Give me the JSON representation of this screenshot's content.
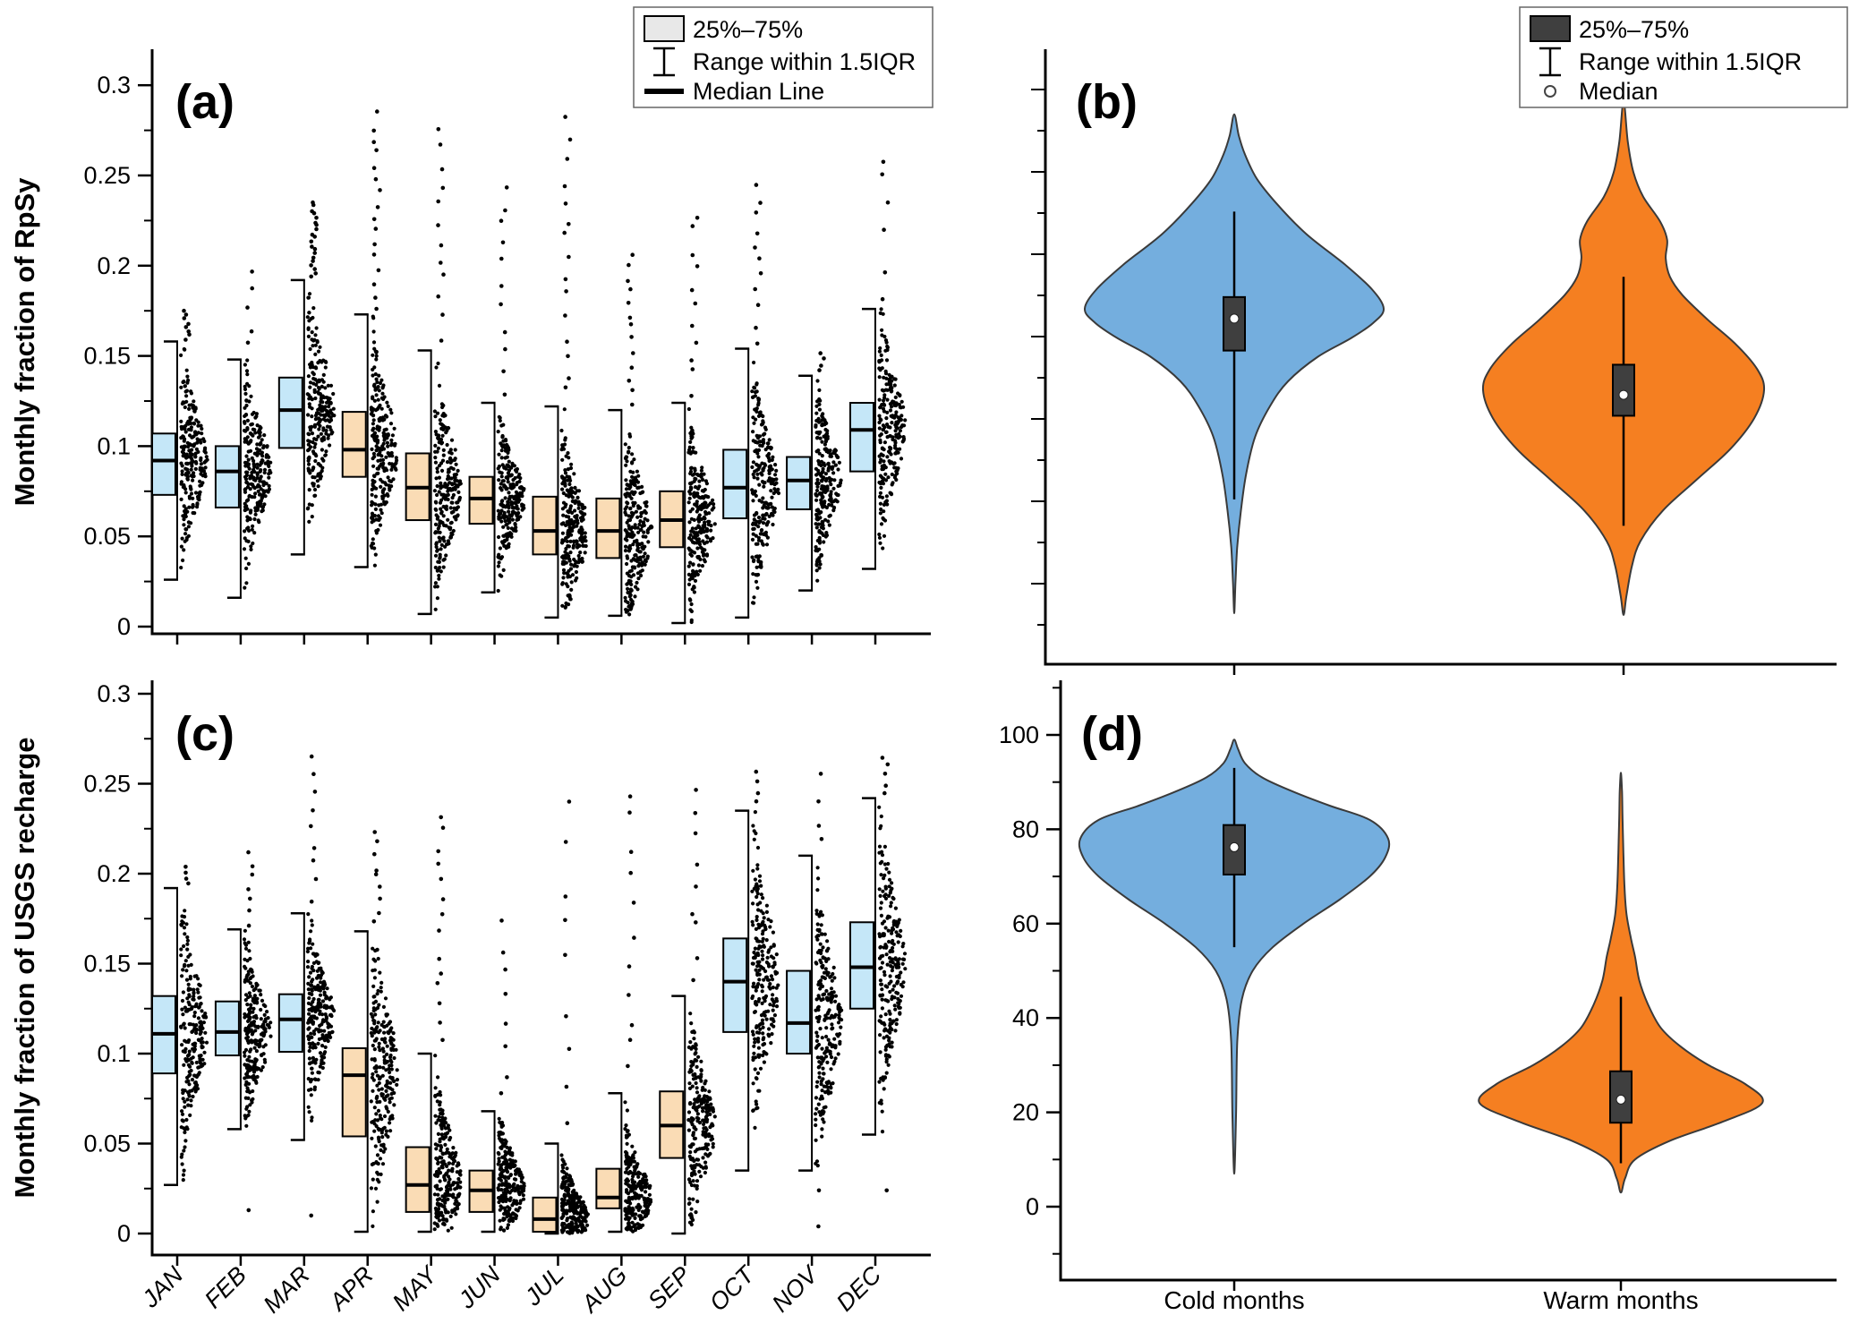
{
  "figure": {
    "background": "#ffffff",
    "panels": {
      "a": {
        "letter": "(a)",
        "ylabel": "Monthly fraction of RpSy"
      },
      "b": {
        "letter": "(b)"
      },
      "c": {
        "letter": "(c)",
        "ylabel": "Monthly fraction of USGS recharge"
      },
      "d": {
        "letter": "(d)"
      }
    },
    "legend_left": {
      "iqr": "25%–75%",
      "range": "Range within 1.5IQR",
      "median": "Median Line"
    },
    "legend_right": {
      "iqr": "25%–75%",
      "range": "Range within 1.5IQR",
      "median": "Median"
    },
    "colors": {
      "box_cold": "#C5E7F8",
      "box_warm": "#FADCB5",
      "violin_cold": "#74AEDE",
      "violin_warm": "#F57F21",
      "violin_box": "#3F3F3F",
      "legend_swatch_left": "#E8E8E8",
      "legend_swatch_right": "#3F3F3F",
      "dots": "#000000",
      "outline": "#3A3A3A"
    }
  },
  "chart_data": [
    {
      "panel": "a",
      "type": "box-scatter",
      "label": "(a)",
      "ylabel": "Monthly fraction of RpSy",
      "ylim": [
        0,
        0.3
      ],
      "yticks": [
        0,
        0.05,
        0.1,
        0.15,
        0.2,
        0.25,
        0.3
      ],
      "ytick_labels": [
        "0",
        "0.05",
        "0.1",
        "0.15",
        "0.2",
        "0.25",
        "0.3"
      ],
      "categories": [
        "JAN",
        "FEB",
        "MAR",
        "APR",
        "MAY",
        "JUN",
        "JUL",
        "AUG",
        "SEP",
        "OCT",
        "NOV",
        "DEC"
      ],
      "season": [
        "cold",
        "cold",
        "cold",
        "warm",
        "warm",
        "warm",
        "warm",
        "warm",
        "warm",
        "cold",
        "cold",
        "cold"
      ],
      "legend": {
        "iqr": "25%–75%",
        "range": "Range within 1.5IQR",
        "median": "Median Line"
      },
      "boxes": [
        {
          "month": "JAN",
          "q1": 0.073,
          "median": 0.092,
          "q3": 0.107,
          "whisker_low": 0.026,
          "whisker_high": 0.158,
          "outlier_max": 0.176,
          "n_outliers": 8,
          "outliers_low": []
        },
        {
          "month": "FEB",
          "q1": 0.066,
          "median": 0.086,
          "q3": 0.1,
          "whisker_low": 0.016,
          "whisker_high": 0.148,
          "outlier_max": 0.198,
          "n_outliers": 5,
          "outliers_low": []
        },
        {
          "month": "MAR",
          "q1": 0.099,
          "median": 0.12,
          "q3": 0.138,
          "whisker_low": 0.04,
          "whisker_high": 0.192,
          "outlier_max": 0.236,
          "n_outliers": 20,
          "outliers_low": []
        },
        {
          "month": "APR",
          "q1": 0.083,
          "median": 0.098,
          "q3": 0.119,
          "whisker_low": 0.033,
          "whisker_high": 0.173,
          "outlier_max": 0.286,
          "n_outliers": 16,
          "outliers_low": []
        },
        {
          "month": "MAY",
          "q1": 0.059,
          "median": 0.077,
          "q3": 0.096,
          "whisker_low": 0.007,
          "whisker_high": 0.153,
          "outlier_max": 0.28,
          "n_outliers": 12,
          "outliers_low": []
        },
        {
          "month": "JUN",
          "q1": 0.057,
          "median": 0.071,
          "q3": 0.083,
          "whisker_low": 0.019,
          "whisker_high": 0.124,
          "outlier_max": 0.25,
          "n_outliers": 11,
          "outliers_low": []
        },
        {
          "month": "JUL",
          "q1": 0.04,
          "median": 0.053,
          "q3": 0.072,
          "whisker_low": 0.005,
          "whisker_high": 0.122,
          "outlier_max": 0.284,
          "n_outliers": 15,
          "outliers_low": []
        },
        {
          "month": "AUG",
          "q1": 0.038,
          "median": 0.053,
          "q3": 0.071,
          "whisker_low": 0.006,
          "whisker_high": 0.12,
          "outlier_max": 0.21,
          "n_outliers": 13,
          "outliers_low": []
        },
        {
          "month": "SEP",
          "q1": 0.044,
          "median": 0.059,
          "q3": 0.075,
          "whisker_low": 0.002,
          "whisker_high": 0.124,
          "outlier_max": 0.232,
          "n_outliers": 11,
          "outliers_low": []
        },
        {
          "month": "OCT",
          "q1": 0.06,
          "median": 0.077,
          "q3": 0.098,
          "whisker_low": 0.005,
          "whisker_high": 0.154,
          "outlier_max": 0.247,
          "n_outliers": 11,
          "outliers_low": []
        },
        {
          "month": "NOV",
          "q1": 0.065,
          "median": 0.081,
          "q3": 0.094,
          "whisker_low": 0.02,
          "whisker_high": 0.139,
          "outlier_max": 0.154,
          "n_outliers": 4,
          "outliers_low": []
        },
        {
          "month": "DEC",
          "q1": 0.086,
          "median": 0.109,
          "q3": 0.124,
          "whisker_low": 0.032,
          "whisker_high": 0.176,
          "outlier_max": 0.266,
          "n_outliers": 6,
          "outliers_low": []
        }
      ]
    },
    {
      "panel": "b",
      "type": "violin",
      "label": "(b)",
      "yaxis": "unlabeled ticks",
      "legend": {
        "iqr": "25%–75%",
        "range": "Range within 1.5IQR",
        "median": "Median"
      },
      "value_scale": "fraction of panel height from bottom axis",
      "groups": [
        {
          "name": "Cold months",
          "color_key": "violin_cold",
          "median": 0.562,
          "q1": 0.51,
          "q3": 0.597,
          "whisker_low": 0.268,
          "whisker_high": 0.736,
          "profile": [
            [
              0.083,
              0
            ],
            [
              0.13,
              0.008
            ],
            [
              0.19,
              0.02
            ],
            [
              0.25,
              0.045
            ],
            [
              0.31,
              0.08
            ],
            [
              0.37,
              0.14
            ],
            [
              0.42,
              0.24
            ],
            [
              0.46,
              0.36
            ],
            [
              0.5,
              0.56
            ],
            [
              0.53,
              0.78
            ],
            [
              0.555,
              0.93
            ],
            [
              0.578,
              1
            ],
            [
              0.61,
              0.92
            ],
            [
              0.65,
              0.74
            ],
            [
              0.7,
              0.48
            ],
            [
              0.75,
              0.28
            ],
            [
              0.79,
              0.15
            ],
            [
              0.83,
              0.07
            ],
            [
              0.86,
              0.03
            ],
            [
              0.894,
              0
            ]
          ]
        },
        {
          "name": "Warm months",
          "color_key": "violin_warm",
          "median": 0.438,
          "q1": 0.404,
          "q3": 0.487,
          "whisker_low": 0.225,
          "whisker_high": 0.63,
          "profile": [
            [
              0.08,
              0
            ],
            [
              0.11,
              0.02
            ],
            [
              0.16,
              0.06
            ],
            [
              0.2,
              0.12
            ],
            [
              0.25,
              0.28
            ],
            [
              0.3,
              0.52
            ],
            [
              0.35,
              0.76
            ],
            [
              0.4,
              0.93
            ],
            [
              0.446,
              1
            ],
            [
              0.48,
              0.95
            ],
            [
              0.52,
              0.8
            ],
            [
              0.56,
              0.6
            ],
            [
              0.6,
              0.42
            ],
            [
              0.63,
              0.33
            ],
            [
              0.66,
              0.3
            ],
            [
              0.69,
              0.31
            ],
            [
              0.72,
              0.26
            ],
            [
              0.76,
              0.14
            ],
            [
              0.8,
              0.07
            ],
            [
              0.85,
              0.03
            ],
            [
              0.915,
              0
            ]
          ]
        }
      ]
    },
    {
      "panel": "c",
      "type": "box-scatter",
      "label": "(c)",
      "ylabel": "Monthly fraction of USGS recharge",
      "ylim": [
        0,
        0.3
      ],
      "yticks": [
        0,
        0.05,
        0.1,
        0.15,
        0.2,
        0.25,
        0.3
      ],
      "ytick_labels": [
        "0",
        "0.05",
        "0.1",
        "0.15",
        "0.2",
        "0.25",
        "0.3"
      ],
      "categories": [
        "JAN",
        "FEB",
        "MAR",
        "APR",
        "MAY",
        "JUN",
        "JUL",
        "AUG",
        "SEP",
        "OCT",
        "NOV",
        "DEC"
      ],
      "season": [
        "cold",
        "cold",
        "cold",
        "warm",
        "warm",
        "warm",
        "warm",
        "warm",
        "warm",
        "cold",
        "cold",
        "cold"
      ],
      "boxes": [
        {
          "month": "JAN",
          "q1": 0.089,
          "median": 0.111,
          "q3": 0.132,
          "whisker_low": 0.027,
          "whisker_high": 0.192,
          "outlier_max": 0.206,
          "n_outliers": 4,
          "outliers_low": []
        },
        {
          "month": "FEB",
          "q1": 0.099,
          "median": 0.112,
          "q3": 0.129,
          "whisker_low": 0.058,
          "whisker_high": 0.169,
          "outlier_max": 0.212,
          "n_outliers": 7,
          "outliers_low": [
            0.013
          ]
        },
        {
          "month": "MAR",
          "q1": 0.101,
          "median": 0.119,
          "q3": 0.133,
          "whisker_low": 0.052,
          "whisker_high": 0.178,
          "outlier_max": 0.27,
          "n_outliers": 9,
          "outliers_low": [
            0.01
          ]
        },
        {
          "month": "APR",
          "q1": 0.054,
          "median": 0.088,
          "q3": 0.103,
          "whisker_low": 0.001,
          "whisker_high": 0.168,
          "outlier_max": 0.225,
          "n_outliers": 9,
          "outliers_low": []
        },
        {
          "month": "MAY",
          "q1": 0.012,
          "median": 0.027,
          "q3": 0.048,
          "whisker_low": 0.001,
          "whisker_high": 0.1,
          "outlier_max": 0.238,
          "n_outliers": 14,
          "outliers_low": []
        },
        {
          "month": "JUN",
          "q1": 0.012,
          "median": 0.024,
          "q3": 0.035,
          "whisker_low": 0.001,
          "whisker_high": 0.068,
          "outlier_max": 0.176,
          "n_outliers": 8,
          "outliers_low": []
        },
        {
          "month": "JUL",
          "q1": 0.001,
          "median": 0.008,
          "q3": 0.02,
          "whisker_low": 0.0,
          "whisker_high": 0.05,
          "outlier_max": 0.243,
          "n_outliers": 9,
          "outliers_low": []
        },
        {
          "month": "AUG",
          "q1": 0.014,
          "median": 0.02,
          "q3": 0.036,
          "whisker_low": 0.001,
          "whisker_high": 0.078,
          "outlier_max": 0.251,
          "n_outliers": 11,
          "outliers_low": []
        },
        {
          "month": "SEP",
          "q1": 0.042,
          "median": 0.06,
          "q3": 0.079,
          "whisker_low": 0.0,
          "whisker_high": 0.132,
          "outlier_max": 0.255,
          "n_outliers": 9,
          "outliers_low": []
        },
        {
          "month": "OCT",
          "q1": 0.112,
          "median": 0.14,
          "q3": 0.164,
          "whisker_low": 0.035,
          "whisker_high": 0.235,
          "outlier_max": 0.257,
          "n_outliers": 4,
          "outliers_low": []
        },
        {
          "month": "NOV",
          "q1": 0.1,
          "median": 0.117,
          "q3": 0.146,
          "whisker_low": 0.035,
          "whisker_high": 0.21,
          "outlier_max": 0.26,
          "n_outliers": 4,
          "outliers_low": [
            0.004,
            0.024
          ]
        },
        {
          "month": "DEC",
          "q1": 0.125,
          "median": 0.148,
          "q3": 0.173,
          "whisker_low": 0.055,
          "whisker_high": 0.242,
          "outlier_max": 0.267,
          "n_outliers": 5,
          "outliers_low": [
            0.024
          ]
        }
      ]
    },
    {
      "panel": "d",
      "type": "violin",
      "label": "(d)",
      "ylim": [
        -12,
        112
      ],
      "yticks": [
        0,
        20,
        40,
        60,
        80,
        100
      ],
      "ytick_labels": [
        "0",
        "20",
        "40",
        "60",
        "80",
        "100"
      ],
      "categories": [
        "Cold months",
        "Warm months"
      ],
      "groups": [
        {
          "name": "Cold months",
          "color_key": "violin_cold",
          "median": 76.2,
          "q1": 70.4,
          "q3": 80.9,
          "whisker_low": 55,
          "whisker_high": 93,
          "profile": [
            [
              7,
              0
            ],
            [
              20,
              0.012
            ],
            [
              35,
              0.02
            ],
            [
              44,
              0.05
            ],
            [
              50,
              0.12
            ],
            [
              55,
              0.25
            ],
            [
              60,
              0.45
            ],
            [
              65,
              0.68
            ],
            [
              70,
              0.88
            ],
            [
              74,
              0.98
            ],
            [
              78,
              1
            ],
            [
              82,
              0.88
            ],
            [
              85,
              0.62
            ],
            [
              88,
              0.38
            ],
            [
              91,
              0.18
            ],
            [
              94,
              0.07
            ],
            [
              97,
              0.025
            ],
            [
              99,
              0
            ]
          ]
        },
        {
          "name": "Warm months",
          "color_key": "violin_warm",
          "median": 22.7,
          "q1": 17.8,
          "q3": 28.7,
          "whisker_low": 9.2,
          "whisker_high": 44.5,
          "profile": [
            [
              3,
              0
            ],
            [
              6,
              0.03
            ],
            [
              10,
              0.1
            ],
            [
              14,
              0.35
            ],
            [
              18,
              0.72
            ],
            [
              22,
              1
            ],
            [
              26,
              0.88
            ],
            [
              30,
              0.62
            ],
            [
              34,
              0.42
            ],
            [
              38,
              0.28
            ],
            [
              43,
              0.19
            ],
            [
              48,
              0.13
            ],
            [
              53,
              0.1
            ],
            [
              57,
              0.07
            ],
            [
              62,
              0.04
            ],
            [
              68,
              0.025
            ],
            [
              75,
              0.018
            ],
            [
              82,
              0.012
            ],
            [
              88,
              0.008
            ],
            [
              92,
              0
            ]
          ]
        }
      ]
    }
  ]
}
